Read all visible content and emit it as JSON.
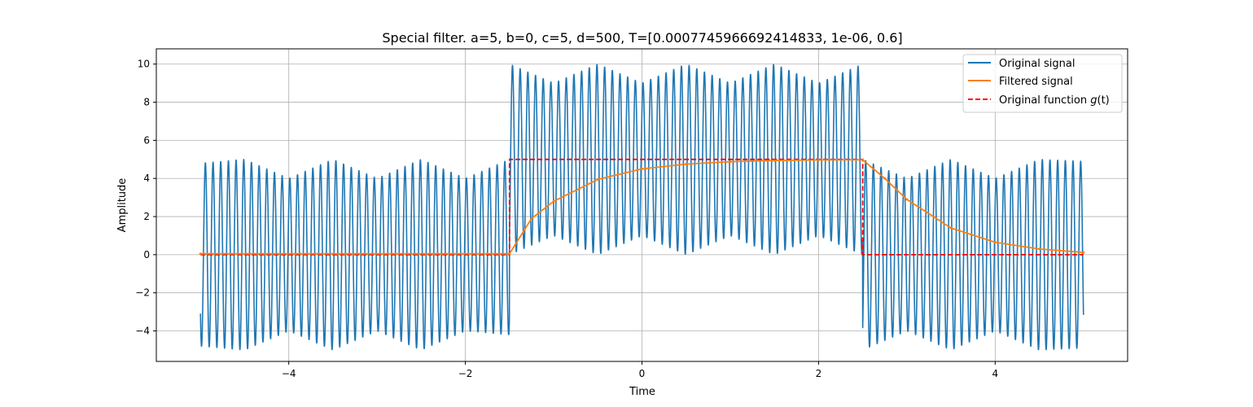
{
  "chart_data": {
    "type": "line",
    "title": "Special filter. a=5, b=0, c=5, d=500, T=[0.0007745966692414833, 1e-06, 0.6]",
    "xlabel": "Time",
    "ylabel": "Amplitude",
    "xlim": [
      -5.5,
      5.5
    ],
    "ylim": [
      -5.6,
      10.8
    ],
    "xticks": [
      -4,
      -2,
      0,
      2,
      4
    ],
    "yticks": [
      -4,
      -2,
      0,
      2,
      4,
      6,
      8,
      10
    ],
    "xtick_labels": [
      "−4",
      "−2",
      "0",
      "2",
      "4"
    ],
    "ytick_labels": [
      "−4",
      "−2",
      "0",
      "2",
      "4",
      "6",
      "8",
      "10"
    ],
    "grid": true,
    "legend_position": "top-right",
    "series": [
      {
        "name": "Original signal",
        "color": "#1f77b4",
        "style": "solid",
        "x": [
          -5,
          -4.5,
          -4,
          -3.5,
          -3,
          -2.5,
          -2,
          -1.5,
          -1.5,
          -1,
          -0.5,
          0,
          0.5,
          1,
          1.5,
          2,
          2.5,
          2.5,
          3,
          3.5,
          4,
          4.5,
          5
        ],
        "upper_envelope": [
          4.8,
          5.0,
          4.0,
          5.0,
          4.0,
          5.0,
          4.0,
          5.0,
          10.0,
          9.0,
          10.0,
          9.0,
          10.0,
          9.0,
          10.0,
          9.0,
          10.0,
          5.0,
          4.0,
          5.0,
          4.0,
          5.0,
          4.9
        ],
        "lower_envelope": [
          -4.8,
          -5.0,
          -4.0,
          -5.0,
          -4.0,
          -5.0,
          -4.0,
          -4.2,
          0.0,
          1.0,
          0.0,
          1.0,
          0.0,
          1.0,
          0.0,
          1.0,
          0.0,
          -5.0,
          -4.0,
          -5.0,
          -4.0,
          -5.0,
          -4.9
        ]
      },
      {
        "name": "Filtered signal",
        "color": "#ff7f0e",
        "style": "solid",
        "x": [
          -5,
          -1.5,
          -1.25,
          -1,
          -0.5,
          0,
          0.5,
          1,
          1.5,
          2,
          2.5,
          2.75,
          3,
          3.5,
          4,
          4.5,
          5
        ],
        "y": [
          0.05,
          0.05,
          1.9,
          2.8,
          3.95,
          4.5,
          4.75,
          4.88,
          4.94,
          4.97,
          4.98,
          4.0,
          2.9,
          1.4,
          0.65,
          0.3,
          0.12
        ]
      },
      {
        "name": "Original function $g(t)$",
        "color": "#ff0000",
        "style": "dashed",
        "x": [
          -5,
          -1.5,
          -1.5,
          2.5,
          2.5,
          5
        ],
        "y": [
          0,
          0,
          5,
          5,
          0,
          0
        ]
      }
    ]
  },
  "legend": {
    "items": [
      {
        "label": "Original signal",
        "color": "#1f77b4",
        "style": "solid"
      },
      {
        "label": "Filtered signal",
        "color": "#ff7f0e",
        "style": "solid"
      },
      {
        "label_prefix": "Original function ",
        "label_math": "g",
        "label_suffix": "(t)",
        "color": "#ff0000",
        "style": "dashed"
      }
    ]
  }
}
